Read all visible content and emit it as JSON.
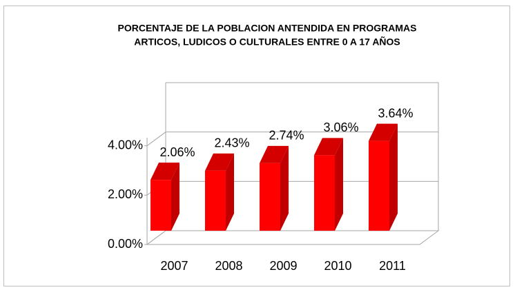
{
  "chart_data": {
    "type": "bar3d",
    "title": [
      "PORCENTAJE DE LA POBLACION ANTENDIDA EN PROGRAMAS",
      "ARTICOS, LUDICOS O CULTURALES ENTRE 0 A 17 AÑOS"
    ],
    "categories": [
      "2007",
      "2008",
      "2009",
      "2010",
      "2011"
    ],
    "values": [
      2.06,
      2.43,
      2.74,
      3.06,
      3.64
    ],
    "value_labels": [
      "2.06%",
      "2.43%",
      "2.74%",
      "3.06%",
      "3.64%"
    ],
    "color": "#ff0000",
    "ylim": [
      0,
      6
    ],
    "yticks": [
      {
        "value": 0,
        "label": "0.00%"
      },
      {
        "value": 2,
        "label": "2.00%"
      },
      {
        "value": 4,
        "label": "4.00%"
      }
    ],
    "grid": true
  }
}
